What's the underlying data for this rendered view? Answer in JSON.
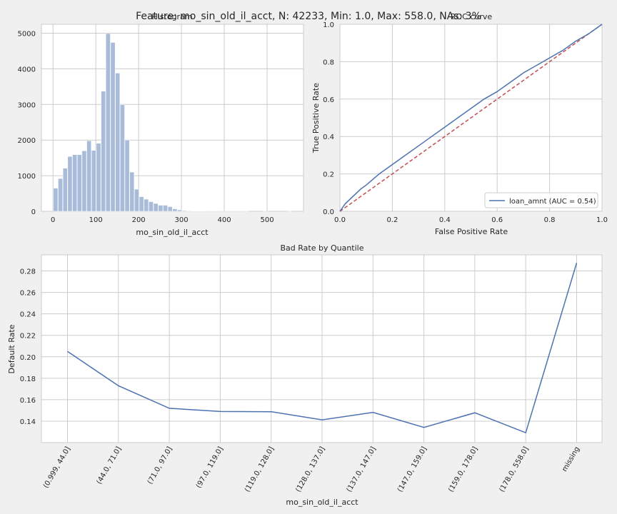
{
  "suptitle": "Feature: mo_sin_old_il_acct, N: 42233, Min: 1.0, Max: 558.0, NAs: 3%",
  "colors": {
    "hist_fill": "#a8bcd9",
    "line": "#4c72b0",
    "diag": "#c44e52"
  },
  "chart_data": [
    {
      "type": "bar",
      "title": "Histogram",
      "xlabel": "mo_sin_old_il_acct",
      "ylabel": "",
      "xlim": [
        -27,
        585
      ],
      "ylim": [
        0,
        5250
      ],
      "xticks": [
        0,
        100,
        200,
        300,
        400,
        500
      ],
      "yticks": [
        0,
        1000,
        2000,
        3000,
        4000,
        5000
      ],
      "bin_width": 11.14,
      "bin_start": 1.0,
      "values": [
        650,
        920,
        1210,
        1540,
        1590,
        1590,
        1700,
        1980,
        1710,
        1910,
        3370,
        4990,
        4740,
        3880,
        2990,
        2000,
        1100,
        620,
        410,
        340,
        270,
        220,
        170,
        170,
        130,
        70,
        40,
        20,
        12,
        8,
        5,
        4,
        3,
        2,
        2,
        1,
        1,
        1,
        1,
        1,
        1,
        0,
        0,
        0,
        1,
        0,
        0,
        0,
        0,
        1
      ]
    },
    {
      "type": "line",
      "title": "ROC curve",
      "xlabel": "False Positive Rate",
      "ylabel": "True Positive Rate",
      "xlim": [
        0,
        1
      ],
      "ylim": [
        0,
        1
      ],
      "xticks": [
        0.0,
        0.2,
        0.4,
        0.6,
        0.8,
        1.0
      ],
      "yticks": [
        0.0,
        0.2,
        0.4,
        0.6,
        0.8,
        1.0
      ],
      "tick_labels": [
        "0.0",
        "0.2",
        "0.4",
        "0.6",
        "0.8",
        "1.0"
      ],
      "legend_position": "lower-right",
      "series": [
        {
          "name": "loan_amnt (AUC = 0.54)",
          "x": [
            0,
            0.02,
            0.05,
            0.08,
            0.1,
            0.15,
            0.2,
            0.25,
            0.3,
            0.35,
            0.4,
            0.45,
            0.5,
            0.55,
            0.6,
            0.65,
            0.7,
            0.75,
            0.8,
            0.85,
            0.9,
            0.95,
            1.0
          ],
          "y": [
            0,
            0.04,
            0.08,
            0.12,
            0.14,
            0.2,
            0.25,
            0.3,
            0.35,
            0.4,
            0.45,
            0.5,
            0.55,
            0.6,
            0.64,
            0.69,
            0.74,
            0.78,
            0.82,
            0.86,
            0.91,
            0.95,
            1.0
          ]
        },
        {
          "x": [
            0,
            1
          ],
          "y": [
            0,
            1
          ],
          "dashed": true
        }
      ]
    },
    {
      "type": "line",
      "title": "Bad Rate by Quantile",
      "xlabel": "mo_sin_old_il_acct",
      "ylabel": "Default Rate",
      "ylim": [
        0.12,
        0.295
      ],
      "yticks": [
        0.14,
        0.16,
        0.18,
        0.2,
        0.22,
        0.24,
        0.26,
        0.28
      ],
      "ytick_labels": [
        "0.14",
        "0.16",
        "0.18",
        "0.20",
        "0.22",
        "0.24",
        "0.26",
        "0.28"
      ],
      "categories": [
        "(0.999, 44.0]",
        "(44.0, 71.0]",
        "(71.0, 97.0]",
        "(97.0, 119.0]",
        "(119.0, 128.0]",
        "(128.0, 137.0]",
        "(137.0, 147.0]",
        "(147.0, 159.0]",
        "(159.0, 178.0]",
        "(178.0, 558.0]",
        "missing"
      ],
      "values": [
        0.205,
        0.173,
        0.152,
        0.149,
        0.1488,
        0.1412,
        0.1482,
        0.1342,
        0.1478,
        0.1292,
        0.2875
      ]
    }
  ]
}
